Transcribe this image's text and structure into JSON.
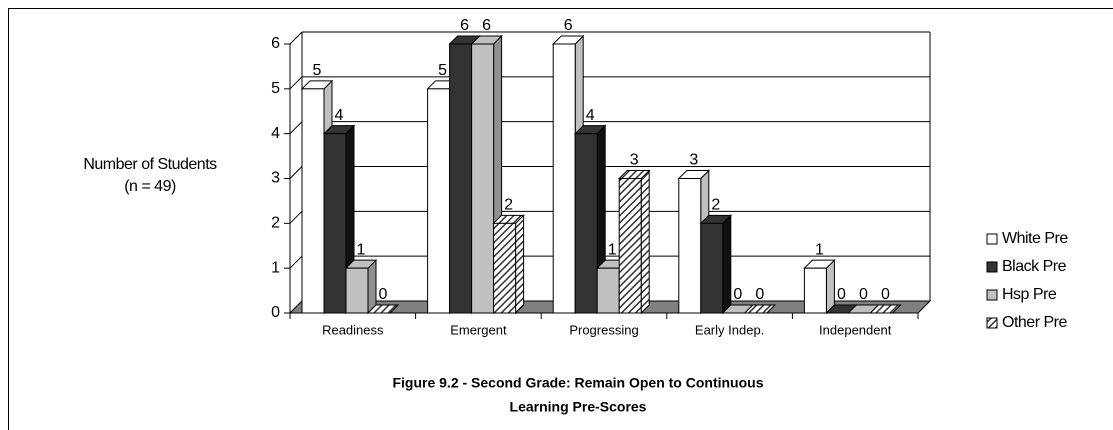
{
  "chart_data": {
    "type": "bar3d",
    "title": [
      "Figure 9.2 - Second Grade: Remain Open to Continuous",
      "Learning  Pre-Scores"
    ],
    "y_label": [
      "Number of Students",
      "(n = 49)"
    ],
    "categories": [
      "Readiness",
      "Emergent",
      "Progressing",
      "Early Indep.",
      "Independent"
    ],
    "series": [
      {
        "name": "White Pre",
        "color": "#ffffff",
        "values": [
          5,
          5,
          6,
          3,
          1
        ]
      },
      {
        "name": "Black Pre",
        "color": "#333333",
        "values": [
          4,
          6,
          4,
          2,
          0
        ]
      },
      {
        "name": "Hsp Pre",
        "color": "#c0c0c0",
        "values": [
          1,
          6,
          1,
          0,
          0
        ]
      },
      {
        "name": "Other Pre",
        "color": "#333333",
        "pattern": "diagonal",
        "values": [
          0,
          2,
          3,
          0,
          0
        ]
      }
    ],
    "ylim": [
      0,
      6
    ],
    "yticks": [
      0,
      1,
      2,
      3,
      4,
      5,
      6
    ],
    "grid": true,
    "legend": "right"
  }
}
